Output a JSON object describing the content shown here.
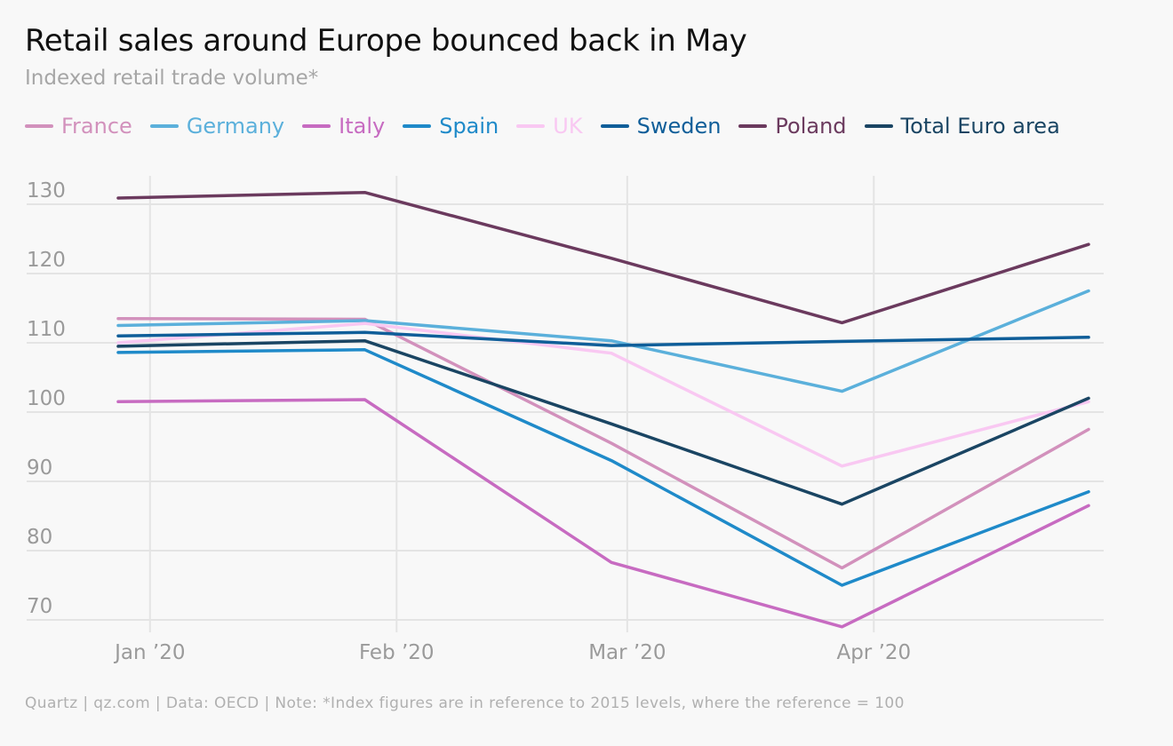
{
  "header": {
    "title": "Retail sales around Europe bounced back in May",
    "subtitle": "Indexed retail trade volume*"
  },
  "footer": {
    "source": "Quartz | qz.com | Data: OECD | Note: *Index figures are in reference to 2015 levels, where the reference = 100"
  },
  "colors": {
    "background": "#f8f8f8",
    "grid": "#e4e4e4",
    "tick_text": "#9a9a9a"
  },
  "chart_data": {
    "type": "line",
    "x": [
      "2019-12-28",
      "2020-01-28",
      "2020-02-28",
      "2020-03-28",
      "2020-04-28"
    ],
    "x_ticks": [
      {
        "label": "Jan ’20",
        "date": "2020-01-01"
      },
      {
        "label": "Feb ’20",
        "date": "2020-02-01"
      },
      {
        "label": "Mar ’20",
        "date": "2020-03-01"
      },
      {
        "label": "Apr ’20",
        "date": "2020-04-01"
      }
    ],
    "y_ticks": [
      70,
      80,
      90,
      100,
      110,
      120,
      130
    ],
    "ylim": [
      68,
      132
    ],
    "grid": true,
    "legend_position": "top",
    "series": [
      {
        "name": "France",
        "color": "#d291bc",
        "values": [
          113.5,
          113.4,
          95.5,
          77.5,
          97.5
        ]
      },
      {
        "name": "Germany",
        "color": "#5bb0db",
        "values": [
          112.5,
          113.2,
          110.3,
          103.0,
          117.5
        ]
      },
      {
        "name": "Italy",
        "color": "#c76bc1",
        "values": [
          101.5,
          101.8,
          78.3,
          69.0,
          86.5
        ]
      },
      {
        "name": "Spain",
        "color": "#1f8ac9",
        "values": [
          108.6,
          109.0,
          93.0,
          75.0,
          88.5
        ]
      },
      {
        "name": "UK",
        "color": "#f9c8f2",
        "values": [
          110.0,
          112.8,
          108.5,
          92.2,
          101.5
        ]
      },
      {
        "name": "Sweden",
        "color": "#0f5e99",
        "values": [
          111.0,
          111.5,
          109.6,
          110.2,
          110.8
        ]
      },
      {
        "name": "Poland",
        "color": "#6b3a5e",
        "values": [
          130.9,
          131.7,
          122.2,
          112.9,
          124.2
        ]
      },
      {
        "name": "Total Euro area",
        "color": "#1a4563",
        "values": [
          109.5,
          110.3,
          98.3,
          86.7,
          102.0
        ]
      }
    ]
  }
}
